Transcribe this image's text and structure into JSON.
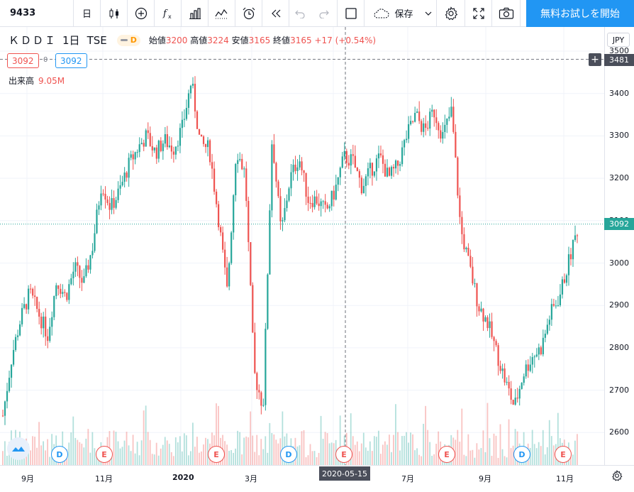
{
  "toolbar": {
    "symbol": "9433",
    "interval": "日",
    "save_label": "保存",
    "trial_label": "無料お試しを開始"
  },
  "legend": {
    "title": "ＫＤＤＩ",
    "interval": "1日",
    "exchange": "TSE",
    "dividend_flag": "D",
    "open_label": "始値",
    "open": "3200",
    "high_label": "高値",
    "high": "3224",
    "low_label": "安値",
    "low": "3165",
    "close_label": "終値",
    "close": "3165",
    "change": "+17 (+0.54%)",
    "price_box_red": "3092",
    "price_box_zero": "0",
    "price_box_blue": "3092",
    "volume_label": "出来高",
    "volume_value": "9.05M"
  },
  "price_axis": {
    "currency": "JPY",
    "ticks": [
      "3500",
      "3400",
      "3300",
      "3200",
      "3100",
      "3000",
      "2900",
      "2800",
      "2700",
      "2600"
    ],
    "crosshair_price": "3481",
    "last_price": "3092"
  },
  "time_axis": {
    "ticks": [
      "9月",
      "11月",
      "2020",
      "3月",
      "7月",
      "9月",
      "11月"
    ],
    "crosshair_date": "2020-05-15"
  },
  "events": [
    "D",
    "E",
    "E",
    "D",
    "E",
    "E",
    "D",
    "E"
  ],
  "colors": {
    "up": "#26a69a",
    "down": "#ef5350",
    "accent": "#2196f3",
    "crosshair": "#4a4e5a"
  },
  "chart_data": {
    "type": "candlestick",
    "y_range": [
      2540,
      3510
    ],
    "last": 3092,
    "points": [
      2640,
      2780,
      2870,
      2930,
      2880,
      2830,
      2960,
      2920,
      2990,
      2950,
      3040,
      3190,
      3130,
      3170,
      3230,
      3270,
      3300,
      3260,
      3290,
      3270,
      3320,
      3430,
      3280,
      3270,
      3110,
      2930,
      3270,
      3210,
      2740,
      2660,
      3300,
      3070,
      3200,
      3250,
      3150,
      3150,
      3120,
      3170,
      3250,
      3240,
      3180,
      3220,
      3250,
      3200,
      3230,
      3300,
      3350,
      3310,
      3360,
      3300,
      3360,
      3080,
      2990,
      2900,
      2860,
      2790,
      2720,
      2660,
      2740,
      2780,
      2800,
      2880,
      2920,
      3000,
      3080
    ]
  }
}
